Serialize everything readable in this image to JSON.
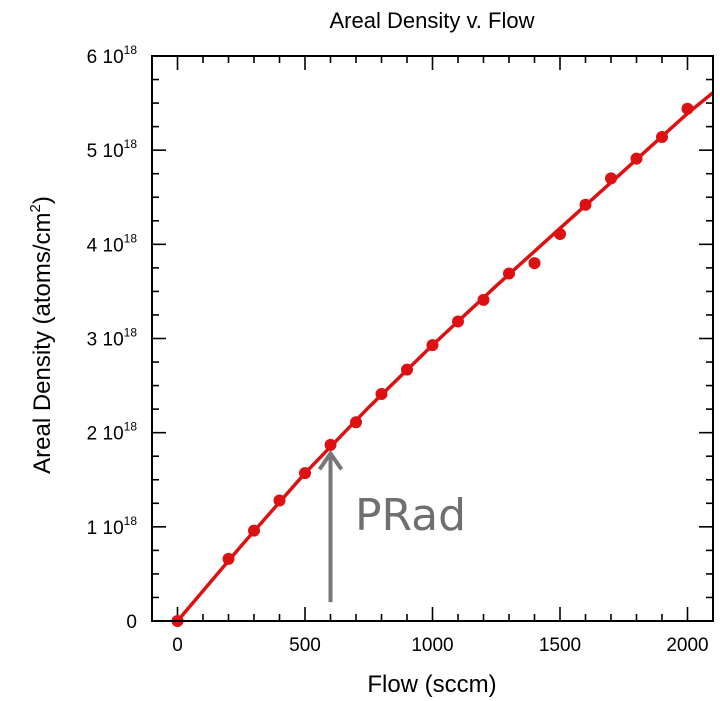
{
  "chart_data": {
    "type": "scatter",
    "title": "Areal Density v. Flow",
    "xlabel": "Flow (sccm)",
    "ylabel_main": "Areal Density (atoms/cm",
    "ylabel_sup": "2",
    "ylabel_close": ")",
    "xlim": [
      -100,
      2100
    ],
    "ylim": [
      0,
      6e+18
    ],
    "x_ticks": [
      0,
      500,
      1000,
      1500,
      2000
    ],
    "x_tick_labels": [
      "0",
      "500",
      "1000",
      "1500",
      "2000"
    ],
    "y_ticks": [
      {
        "value": 0,
        "base": "0",
        "exp": ""
      },
      {
        "value": 1e+18,
        "base": "1 10",
        "exp": "18"
      },
      {
        "value": 2e+18,
        "base": "2 10",
        "exp": "18"
      },
      {
        "value": 3e+18,
        "base": "3 10",
        "exp": "18"
      },
      {
        "value": 4e+18,
        "base": "4 10",
        "exp": "18"
      },
      {
        "value": 5e+18,
        "base": "5 10",
        "exp": "18"
      },
      {
        "value": 6e+18,
        "base": "6 10",
        "exp": "18"
      }
    ],
    "grid": false,
    "colors": {
      "series": "#dd1111",
      "annotation": "#777777"
    },
    "series": [
      {
        "x": [
          0,
          200,
          300,
          400,
          500,
          600,
          700,
          800,
          900,
          1000,
          1100,
          1200,
          1300,
          1400,
          1500,
          1600,
          1700,
          1800,
          1900,
          2000
        ],
        "y": [
          0,
          6.6e+17,
          9.6e+17,
          1.28e+18,
          1.57e+18,
          1.87e+18,
          2.11e+18,
          2.41e+18,
          2.67e+18,
          2.93e+18,
          3.18e+18,
          3.41e+18,
          3.69e+18,
          3.8e+18,
          4.11e+18,
          4.42e+18,
          4.7e+18,
          4.91e+18,
          5.14e+18,
          5.44e+18
        ]
      }
    ],
    "fit_line": {
      "x": [
        0,
        250,
        500,
        750,
        1000,
        1250,
        1500,
        1750,
        2000,
        2100
      ],
      "y": [
        0,
        8e+17,
        1.57e+18,
        2.27e+18,
        2.93e+18,
        3.56e+18,
        4.17e+18,
        4.78e+18,
        5.39e+18,
        5.61e+18
      ]
    },
    "annotation": {
      "text": "PRad",
      "arrow_x": 600,
      "arrow_from_y": 2e+17,
      "arrow_to_y": 1.78e+18
    }
  }
}
